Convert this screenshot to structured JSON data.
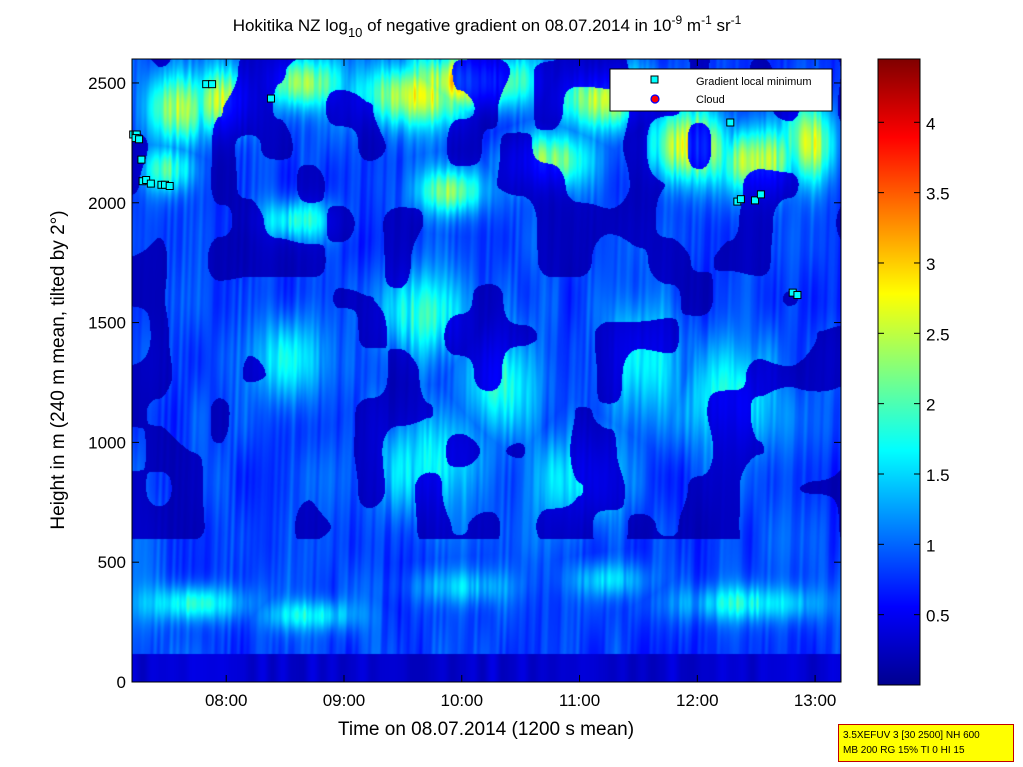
{
  "chart_data": {
    "type": "heatmap",
    "title": {
      "prefix": "Hokitika NZ log",
      "sub": "10",
      "middle": " of negative gradient on 08.07.2014 in 10",
      "sup1": "-9",
      "unit_m": " m",
      "sup2": "-1",
      "unit_sr": " sr",
      "sup3": "-1"
    },
    "xlabel": "Time on 08.07.2014 (1200 s mean)",
    "ylabel": "Height in m (240 m mean, tilted by 2°)",
    "xlim_hours": [
      7.2,
      13.22
    ],
    "ylim": [
      0,
      2600
    ],
    "xticks": [
      {
        "label": "08:00",
        "hour": 8
      },
      {
        "label": "09:00",
        "hour": 9
      },
      {
        "label": "10:00",
        "hour": 10
      },
      {
        "label": "11:00",
        "hour": 11
      },
      {
        "label": "12:00",
        "hour": 12
      },
      {
        "label": "13:00",
        "hour": 13
      }
    ],
    "yticks": [
      0,
      500,
      1000,
      1500,
      2000,
      2500
    ],
    "colorbar": {
      "range": [
        0,
        4.45
      ],
      "ticks": [
        0.5,
        1,
        1.5,
        2,
        2.5,
        3,
        3.5,
        4
      ]
    },
    "legend": {
      "position": "top-right",
      "entries": [
        {
          "label": "Gradient local minimum",
          "marker": "square",
          "color": "#00ffff"
        },
        {
          "label": "Cloud",
          "marker": "circle",
          "color": "#ff0000"
        }
      ]
    },
    "gradient_local_minima": [
      {
        "time": 7.21,
        "height": 2285
      },
      {
        "time": 7.24,
        "height": 2285
      },
      {
        "time": 7.23,
        "height": 2270
      },
      {
        "time": 7.26,
        "height": 2265
      },
      {
        "time": 7.28,
        "height": 2180
      },
      {
        "time": 7.29,
        "height": 2090
      },
      {
        "time": 7.32,
        "height": 2095
      },
      {
        "time": 7.36,
        "height": 2080
      },
      {
        "time": 7.45,
        "height": 2075
      },
      {
        "time": 7.48,
        "height": 2075
      },
      {
        "time": 7.52,
        "height": 2070
      },
      {
        "time": 7.83,
        "height": 2495
      },
      {
        "time": 7.88,
        "height": 2495
      },
      {
        "time": 8.38,
        "height": 2435
      },
      {
        "time": 12.28,
        "height": 2335
      },
      {
        "time": 12.34,
        "height": 2005
      },
      {
        "time": 12.37,
        "height": 2015
      },
      {
        "time": 12.49,
        "height": 2010
      },
      {
        "time": 12.54,
        "height": 2035
      },
      {
        "time": 12.81,
        "height": 1625
      },
      {
        "time": 12.85,
        "height": 1615
      }
    ],
    "field_description": {
      "structures": [
        {
          "t": 10.05,
          "h": 2510,
          "value": 2.6,
          "st": 0.55,
          "sh": 110
        },
        {
          "t": 9.6,
          "h": 2450,
          "value": 2.4,
          "st": 0.45,
          "sh": 120
        },
        {
          "t": 7.95,
          "h": 2430,
          "value": 2.3,
          "st": 0.25,
          "sh": 130
        },
        {
          "t": 7.6,
          "h": 2400,
          "value": 2.1,
          "st": 0.25,
          "sh": 140
        },
        {
          "t": 8.65,
          "h": 2500,
          "value": 2.0,
          "st": 0.3,
          "sh": 100
        },
        {
          "t": 11.2,
          "h": 2440,
          "value": 2.2,
          "st": 0.4,
          "sh": 120
        },
        {
          "t": 11.95,
          "h": 2230,
          "value": 2.35,
          "st": 0.35,
          "sh": 150
        },
        {
          "t": 12.5,
          "h": 2180,
          "value": 2.4,
          "st": 0.3,
          "sh": 130
        },
        {
          "t": 12.95,
          "h": 2250,
          "value": 2.3,
          "st": 0.2,
          "sh": 160
        },
        {
          "t": 10.75,
          "h": 2180,
          "value": 2.1,
          "st": 0.3,
          "sh": 110
        },
        {
          "t": 9.9,
          "h": 2050,
          "value": 2.0,
          "st": 0.25,
          "sh": 90
        },
        {
          "t": 8.6,
          "h": 1930,
          "value": 1.6,
          "st": 0.3,
          "sh": 80
        },
        {
          "t": 7.5,
          "h": 2140,
          "value": 1.7,
          "st": 0.2,
          "sh": 90
        },
        {
          "t": 9.7,
          "h": 1540,
          "value": 1.6,
          "st": 0.35,
          "sh": 170
        },
        {
          "t": 8.55,
          "h": 1350,
          "value": 1.5,
          "st": 0.3,
          "sh": 170
        },
        {
          "t": 10.35,
          "h": 1260,
          "value": 1.55,
          "st": 0.3,
          "sh": 200
        },
        {
          "t": 11.55,
          "h": 1350,
          "value": 1.5,
          "st": 0.35,
          "sh": 200
        },
        {
          "t": 12.25,
          "h": 1200,
          "value": 1.5,
          "st": 0.35,
          "sh": 210
        },
        {
          "t": 9.75,
          "h": 900,
          "value": 1.5,
          "st": 0.45,
          "sh": 200
        },
        {
          "t": 11.0,
          "h": 850,
          "value": 1.45,
          "st": 0.35,
          "sh": 180
        },
        {
          "t": 7.75,
          "h": 330,
          "value": 1.6,
          "st": 0.4,
          "sh": 70
        },
        {
          "t": 8.7,
          "h": 280,
          "value": 1.45,
          "st": 0.35,
          "sh": 60
        },
        {
          "t": 12.45,
          "h": 330,
          "value": 1.5,
          "st": 0.55,
          "sh": 70
        },
        {
          "t": 11.25,
          "h": 430,
          "value": 1.3,
          "st": 0.3,
          "sh": 70
        },
        {
          "t": 10.0,
          "h": 400,
          "value": 1.2,
          "st": 0.4,
          "sh": 70
        }
      ]
    }
  },
  "info_box": {
    "line1": "3.5XEFUV 3 [30 2500] NH 600",
    "line2": "MB 200 RG 15% TI 0 HI 15"
  }
}
